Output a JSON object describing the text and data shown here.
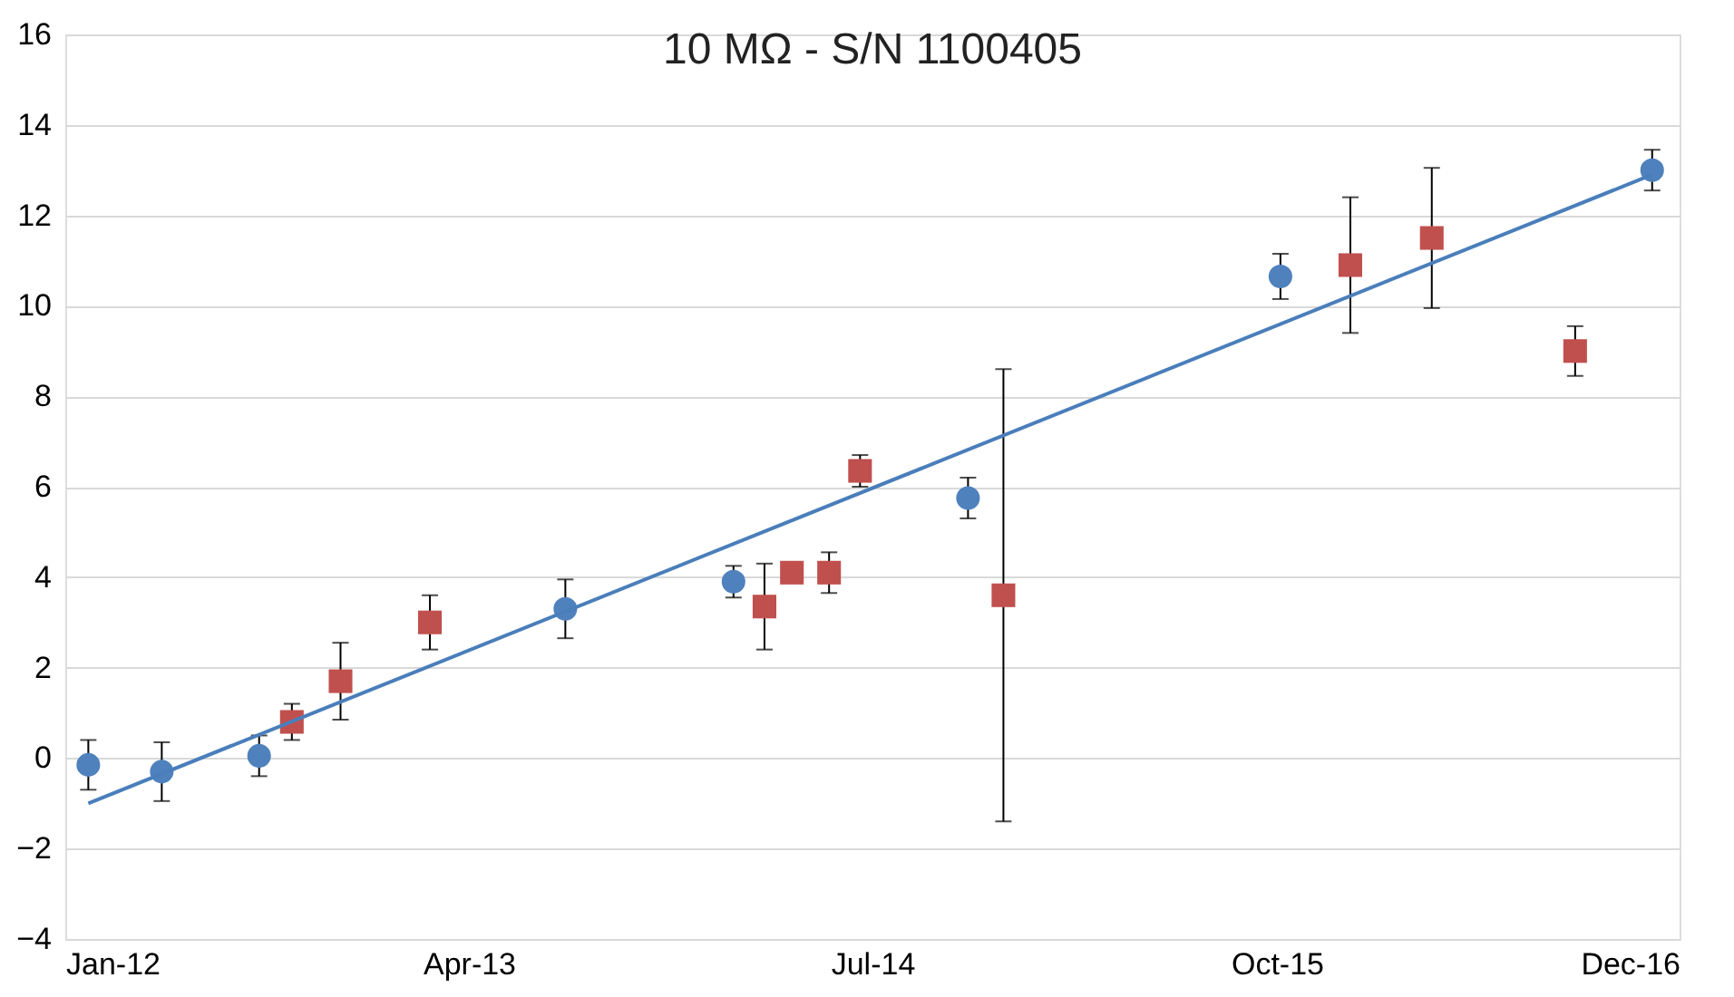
{
  "chart_data": {
    "type": "scatter",
    "title": "10 MΩ - S/N 1100405",
    "xlim": [
      "2012-01-01",
      "2016-12-29"
    ],
    "xticks": [
      {
        "value": "2012-01-01",
        "label": "Jan-12"
      },
      {
        "value": "2013-04-01",
        "label": "Apr-13"
      },
      {
        "value": "2014-07-01",
        "label": "Jul-14"
      },
      {
        "value": "2015-10-01",
        "label": "Oct-15"
      },
      {
        "value": "2016-12-29",
        "label": "Dec-16"
      }
    ],
    "ylim": [
      -4,
      16
    ],
    "yticks": [
      -4,
      -2,
      0,
      2,
      4,
      6,
      8,
      10,
      12,
      14,
      16
    ],
    "grid": "y",
    "legend": false,
    "series": [
      {
        "marker": "circle",
        "color": "#4f81bd",
        "x": [
          "2012-01-27",
          "2012-04-19",
          "2012-08-07",
          "2013-07-19",
          "2014-01-25",
          "2014-10-17",
          "2015-10-05",
          "2016-11-28"
        ],
        "values": [
          -0.15,
          -0.3,
          0.05,
          3.3,
          3.9,
          5.75,
          10.65,
          13.0
        ],
        "errors": [
          0.55,
          0.65,
          0.45,
          0.65,
          0.35,
          0.45,
          0.5,
          0.45
        ]
      },
      {
        "marker": "square",
        "color": "#c0504d",
        "x": [
          "2012-09-13",
          "2012-11-07",
          "2013-02-16",
          "2014-03-01",
          "2014-04-01",
          "2014-05-13",
          "2014-06-17",
          "2014-11-26",
          "2015-12-23",
          "2016-03-24",
          "2016-09-02"
        ],
        "values": [
          0.8,
          1.7,
          3.0,
          3.35,
          4.1,
          4.1,
          6.35,
          3.6,
          10.9,
          11.5,
          9.0
        ],
        "errors": [
          0.4,
          0.85,
          0.6,
          0.95,
          null,
          0.45,
          0.35,
          5.0,
          1.5,
          1.55,
          0.55
        ]
      },
      {
        "type": "line",
        "marker": "none",
        "line_style": "solid",
        "color": "#4a7ebb",
        "x": [
          "2012-01-27",
          "2016-11-28"
        ],
        "values": [
          -1.0,
          12.9
        ]
      }
    ]
  }
}
